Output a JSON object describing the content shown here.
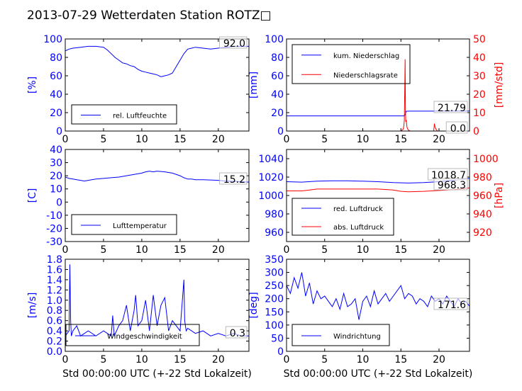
{
  "title": "2013-07-29 Wetterdaten Station ROTZ□",
  "colors": {
    "blue": "#0000ff",
    "red": "#ff0000",
    "black": "#000000"
  },
  "chart_data": [
    {
      "id": "humidity",
      "type": "line",
      "xlim": [
        0,
        24
      ],
      "ylim": [
        0,
        100
      ],
      "xticks": [
        0,
        5,
        10,
        15,
        20
      ],
      "yticks": [
        0,
        20,
        40,
        60,
        80,
        100
      ],
      "ylabel": "[%]",
      "legend": "bottom-left",
      "annotation": "92.0",
      "series": [
        {
          "name": "rel. Luftfeuchte",
          "axis": "left",
          "color": "#0000ff",
          "x": [
            0,
            0.5,
            1,
            2,
            3,
            4,
            5,
            5.5,
            6,
            6.5,
            7,
            7.5,
            8,
            8.5,
            9,
            9.5,
            10,
            10.5,
            11,
            11.5,
            12,
            12.5,
            13,
            13.5,
            14,
            14.5,
            15,
            15.5,
            16,
            16.5,
            17,
            18,
            19,
            20,
            21,
            22,
            23,
            24
          ],
          "y": [
            87,
            89,
            90,
            91,
            92,
            92,
            91,
            88,
            84,
            80,
            77,
            74,
            73,
            71,
            70,
            67,
            65,
            64,
            63,
            62,
            61,
            59,
            60,
            61,
            63,
            70,
            77,
            84,
            89,
            90,
            91,
            90,
            89,
            90,
            91,
            92,
            92,
            92
          ]
        }
      ]
    },
    {
      "id": "precipitation",
      "type": "line",
      "xlim": [
        0,
        24
      ],
      "ylim": [
        0,
        100
      ],
      "ylim_right": [
        0,
        50
      ],
      "xticks": [
        0,
        5,
        10,
        15,
        20
      ],
      "yticks": [
        0,
        20,
        40,
        60,
        80,
        100
      ],
      "yticks_right": [
        0,
        10,
        20,
        30,
        40,
        50
      ],
      "ylabel": "[mm]",
      "ylabel_right": "[mm/std]",
      "legend": "top-left",
      "annotations": [
        "21.79",
        "0.0"
      ],
      "series": [
        {
          "name": "kum. Niederschlag",
          "axis": "left",
          "color": "#0000ff",
          "x": [
            0,
            15.4,
            15.5,
            15.6,
            15.7,
            16,
            17,
            18,
            19,
            19.4,
            19.6,
            20,
            21,
            22,
            24
          ],
          "y": [
            16.5,
            16.5,
            17,
            19,
            21.5,
            21.6,
            21.6,
            21.6,
            21.6,
            21.6,
            21.79,
            21.79,
            21.79,
            21.79,
            21.79
          ]
        },
        {
          "name": "Niederschlagsrate",
          "axis": "right",
          "color": "#ff0000",
          "x": [
            0,
            15,
            15.3,
            15.4,
            15.45,
            15.5,
            15.55,
            15.6,
            15.65,
            15.7,
            15.8,
            15.9,
            16,
            16.2,
            19,
            19.3,
            19.4,
            19.5,
            19.6,
            19.8,
            24
          ],
          "y": [
            0,
            0,
            1,
            3,
            6,
            20,
            39,
            10,
            5,
            6,
            2,
            1,
            0.5,
            0,
            0,
            0,
            4,
            2,
            1,
            0,
            0
          ]
        }
      ]
    },
    {
      "id": "temperature",
      "type": "line",
      "xlim": [
        0,
        24
      ],
      "ylim": [
        -30,
        40
      ],
      "xticks": [
        0,
        5,
        10,
        15,
        20
      ],
      "yticks": [
        -30,
        -20,
        -10,
        0,
        10,
        20,
        30,
        40
      ],
      "ylabel": "[C]",
      "legend": "bottom-left",
      "annotation": "15.2",
      "series": [
        {
          "name": "Lufttemperatur",
          "axis": "left",
          "color": "#0000ff",
          "x": [
            0,
            0.5,
            1,
            1.5,
            2,
            2.5,
            3,
            4,
            5,
            6,
            7,
            8,
            9,
            10,
            10.5,
            11,
            11.5,
            12,
            13,
            14,
            15,
            15.5,
            16,
            16.5,
            17,
            18,
            19,
            20,
            21,
            22,
            23,
            24
          ],
          "y": [
            19,
            18,
            17.5,
            17,
            16.5,
            16,
            16.5,
            17.5,
            18,
            18.5,
            19,
            20,
            21,
            22,
            23,
            23.5,
            23,
            23.5,
            23,
            22,
            20,
            18.5,
            17.5,
            17.5,
            17,
            17,
            16.8,
            16.5,
            16,
            15.8,
            15.5,
            15.2
          ]
        }
      ]
    },
    {
      "id": "pressure",
      "type": "line",
      "xlim": [
        0,
        24
      ],
      "ylim": [
        950,
        1050
      ],
      "ylim_right": [
        910,
        1010
      ],
      "xticks": [
        0,
        5,
        10,
        15,
        20
      ],
      "yticks": [
        960,
        980,
        1000,
        1020,
        1040
      ],
      "yticks_right": [
        920,
        940,
        960,
        980,
        1000
      ],
      "ylabel_right": "[hPa]",
      "legend": "bottom-left",
      "annotations": [
        "1018.7",
        "968.3"
      ],
      "series": [
        {
          "name": "red. Luftdruck",
          "axis": "left",
          "color": "#0000ff",
          "x": [
            0,
            2,
            4,
            6,
            8,
            10,
            12,
            14,
            16,
            18,
            20,
            22,
            24
          ],
          "y": [
            1015,
            1014.5,
            1015.5,
            1016,
            1016,
            1015.5,
            1015,
            1014,
            1013.5,
            1014,
            1015,
            1016.5,
            1018.7
          ]
        },
        {
          "name": "abs. Luftdruck",
          "axis": "right",
          "color": "#ff0000",
          "x": [
            0,
            2,
            3,
            4,
            6,
            8,
            10,
            12,
            14,
            15,
            16,
            18,
            20,
            22,
            24
          ],
          "y": [
            965,
            965,
            966,
            967,
            967,
            967,
            967,
            967,
            966,
            964.5,
            964,
            964.5,
            965.5,
            966.5,
            968.3
          ]
        }
      ]
    },
    {
      "id": "wind-speed",
      "type": "line",
      "xlim": [
        0,
        24
      ],
      "ylim": [
        0,
        1.8
      ],
      "xticks": [
        0,
        5,
        10,
        15,
        20
      ],
      "yticks": [
        0.0,
        0.2,
        0.4,
        0.6,
        0.8,
        1.0,
        1.2,
        1.4,
        1.6,
        1.8
      ],
      "xlabel": "Std 00:00:00 UTC (+-22 Std Lokalzeit)",
      "ylabel": "[m/s]",
      "legend": "bottom-left",
      "annotation": "0.3",
      "series": [
        {
          "name": "Windgeschwindigkeit",
          "axis": "left",
          "color": "#0000ff",
          "x": [
            0,
            0.5,
            0.6,
            0.7,
            0.8,
            1,
            1.5,
            2,
            3,
            4,
            5,
            6,
            6.2,
            6.4,
            7,
            7.5,
            8,
            8.5,
            9,
            9.2,
            9.5,
            10,
            10.5,
            11,
            11.5,
            12,
            12.5,
            13,
            13.5,
            14,
            14.5,
            15,
            15.5,
            15.6,
            15.8,
            16,
            17,
            18,
            19,
            20,
            21,
            22,
            23,
            24
          ],
          "y": [
            0.3,
            0.4,
            1.7,
            0.6,
            0.3,
            0.4,
            0.5,
            0.3,
            0.4,
            0.3,
            0.4,
            0.3,
            0.7,
            0.3,
            0.5,
            0.6,
            0.9,
            0.4,
            0.8,
            1.1,
            0.5,
            0.6,
            1.0,
            0.4,
            1.1,
            0.5,
            0.9,
            1.05,
            0.4,
            0.6,
            0.5,
            0.4,
            1.4,
            0.6,
            0.4,
            0.45,
            0.35,
            0.4,
            0.3,
            0.35,
            0.3,
            0.35,
            0.3,
            0.3
          ]
        }
      ]
    },
    {
      "id": "wind-direction",
      "type": "line",
      "xlim": [
        0,
        24
      ],
      "ylim": [
        0,
        350
      ],
      "xticks": [
        0,
        5,
        10,
        15,
        20
      ],
      "yticks": [
        0,
        50,
        100,
        150,
        200,
        250,
        300,
        350
      ],
      "xlabel": "Std 00:00:00 UTC (+-22 Std Lokalzeit)",
      "ylabel": "[deg]",
      "legend": "bottom-left",
      "annotation": "171.6",
      "series": [
        {
          "name": "Windrichtung",
          "axis": "left",
          "color": "#0000ff",
          "x": [
            0,
            0.5,
            1,
            1.5,
            2,
            2.5,
            3,
            3.5,
            4,
            4.5,
            5,
            5.5,
            6,
            6.5,
            7,
            7.5,
            8,
            8.5,
            9,
            9.5,
            10,
            10.5,
            11,
            11.5,
            12,
            12.5,
            13,
            13.5,
            14,
            14.5,
            15,
            15.5,
            16,
            16.5,
            17,
            17.5,
            18,
            18.5,
            19,
            19.5,
            20,
            20.5,
            21,
            21.5,
            22,
            22.5,
            23,
            23.5,
            24
          ],
          "y": [
            250,
            220,
            280,
            240,
            300,
            210,
            260,
            180,
            230,
            200,
            210,
            190,
            170,
            200,
            160,
            220,
            170,
            180,
            200,
            120,
            190,
            210,
            170,
            230,
            180,
            200,
            220,
            190,
            210,
            230,
            250,
            200,
            220,
            210,
            180,
            200,
            190,
            170,
            210,
            190,
            200,
            180,
            210,
            190,
            170,
            200,
            180,
            190,
            171.6
          ]
        }
      ]
    }
  ]
}
